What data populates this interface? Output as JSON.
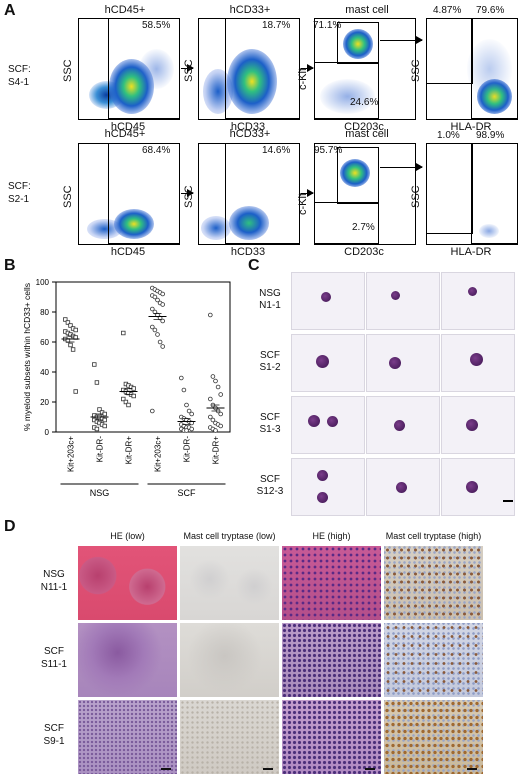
{
  "panels": {
    "a": "A",
    "b": "B",
    "c": "C",
    "d": "D"
  },
  "facs": {
    "row1": {
      "sample": [
        "SCF:",
        "S4-1"
      ],
      "plots": [
        {
          "title": "hCD45+",
          "xlabel": "hCD45",
          "ylabel": "SSC",
          "gate_pct": "58.5%"
        },
        {
          "title": "hCD33+",
          "xlabel": "hCD33",
          "ylabel": "SSC",
          "gate_pct": "18.7%"
        },
        {
          "title": "mast cell",
          "xlabel": "CD203c",
          "ylabel": "c-Kit",
          "gate_pct_top": "71.1%",
          "gate_pct_bottom": "24.6%"
        },
        {
          "title": "",
          "xlabel": "HLA-DR",
          "ylabel": "SSC",
          "gate_pct_left": "4.87%",
          "gate_pct_right": "79.6%"
        }
      ]
    },
    "row2": {
      "sample": [
        "SCF:",
        "S2-1"
      ],
      "plots": [
        {
          "title": "hCD45+",
          "xlabel": "hCD45",
          "ylabel": "SSC",
          "gate_pct": "68.4%"
        },
        {
          "title": "hCD33+",
          "xlabel": "hCD33",
          "ylabel": "SSC",
          "gate_pct": "14.6%"
        },
        {
          "title": "mast cell",
          "xlabel": "CD203c",
          "ylabel": "c-Kit",
          "gate_pct_top": "95.7%",
          "gate_pct_bottom": "2.7%"
        },
        {
          "title": "",
          "xlabel": "HLA-DR",
          "ylabel": "SSC",
          "gate_pct_left": "1.0%",
          "gate_pct_right": "98.9%"
        }
      ]
    }
  },
  "chart_data": {
    "type": "scatter",
    "title": "",
    "ylabel": "% myeloid subsets within hCD33+ cells",
    "xlabel": "",
    "ylim": [
      0,
      100
    ],
    "yticks": [
      0,
      20,
      40,
      60,
      80,
      100
    ],
    "categories": [
      "Kit+203c+",
      "Kit-DR-",
      "Kit-DR+",
      "Kit+203c+",
      "Kit-DR-",
      "Kit-DR+"
    ],
    "groups": [
      {
        "name": "NSG",
        "categories": [
          0,
          1,
          2
        ]
      },
      {
        "name": "SCF",
        "categories": [
          3,
          4,
          5
        ]
      }
    ],
    "series": [
      {
        "category": 0,
        "marker": "square",
        "mean": 62,
        "values": [
          75,
          73,
          71,
          69,
          68,
          67,
          66,
          65,
          64,
          63,
          62,
          61,
          58,
          55,
          27
        ]
      },
      {
        "category": 1,
        "marker": "square",
        "mean": 10,
        "values": [
          45,
          33,
          15,
          13,
          12,
          11,
          10,
          10,
          9,
          8,
          8,
          7,
          6,
          5,
          4,
          3,
          2
        ]
      },
      {
        "category": 2,
        "marker": "square",
        "mean": 27,
        "values": [
          66,
          32,
          31,
          30,
          29,
          28,
          27,
          26,
          25,
          24,
          22,
          20,
          18
        ]
      },
      {
        "category": 3,
        "marker": "circle",
        "mean": 77,
        "values": [
          96,
          95,
          94,
          93,
          92,
          91,
          90,
          88,
          86,
          85,
          82,
          80,
          78,
          76,
          74,
          70,
          68,
          65,
          60,
          57,
          14
        ]
      },
      {
        "category": 4,
        "marker": "circle",
        "mean": 7,
        "values": [
          36,
          28,
          18,
          14,
          12,
          10,
          9,
          8,
          7,
          6,
          5,
          4,
          3,
          3,
          2,
          2,
          1,
          1
        ]
      },
      {
        "category": 5,
        "marker": "circle",
        "mean": 16,
        "values": [
          78,
          37,
          34,
          30,
          25,
          22,
          18,
          16,
          14,
          12,
          10,
          8,
          6,
          5,
          4,
          3,
          2,
          1
        ]
      }
    ]
  },
  "cytospin": {
    "rows": [
      {
        "label": [
          "NSG",
          "N1-1"
        ]
      },
      {
        "label": [
          "SCF",
          "S1-2"
        ]
      },
      {
        "label": [
          "SCF",
          "S1-3"
        ]
      },
      {
        "label": [
          "SCF",
          "S12-3"
        ]
      }
    ]
  },
  "histology": {
    "columns": [
      "HE (low)",
      "Mast cell tryptase (low)",
      "HE (high)",
      "Mast cell tryptase (high)"
    ],
    "rows": [
      {
        "label": [
          "NSG",
          "N11-1"
        ]
      },
      {
        "label": [
          "SCF",
          "S11-1"
        ]
      },
      {
        "label": [
          "SCF",
          "S9-1"
        ]
      }
    ]
  }
}
